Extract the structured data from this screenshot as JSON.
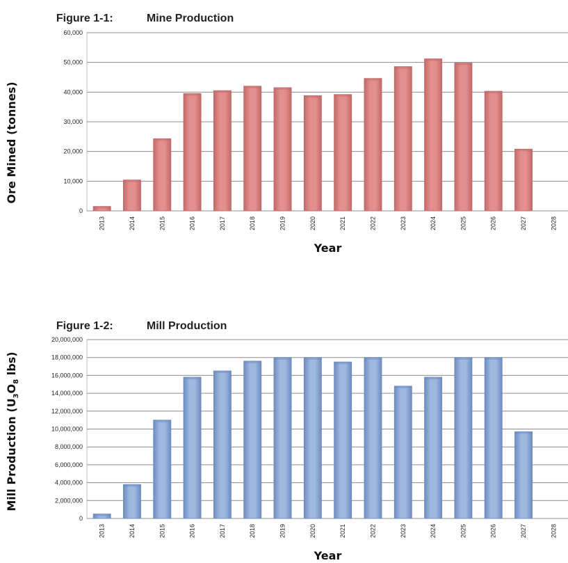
{
  "figure1": {
    "fig_label": "Figure 1-1:",
    "fig_name": "Mine Production"
  },
  "figure2": {
    "fig_label": "Figure 1-2:",
    "fig_name": "Mill Production"
  },
  "colors": {
    "mine_bar": "#e48f8f",
    "mine_bar_dark": "#c26a6a",
    "mill_bar": "#9fb8e0",
    "mill_bar_dark": "#6d8cc0"
  },
  "chart_data": [
    {
      "type": "bar",
      "title": "Mine Production",
      "xlabel": "Year",
      "ylabel": "Ore Mined (tonnes)",
      "ylim": [
        0,
        60000
      ],
      "yticks": [
        0,
        10000,
        20000,
        30000,
        40000,
        50000,
        60000
      ],
      "ytick_labels": [
        "0",
        "10,000",
        "20,000",
        "30,000",
        "40,000",
        "50,000",
        "60,000"
      ],
      "grid": true,
      "categories": [
        "2013",
        "2014",
        "2015",
        "2016",
        "2017",
        "2018",
        "2019",
        "2020",
        "2021",
        "2022",
        "2023",
        "2024",
        "2025",
        "2026",
        "2027",
        "2028"
      ],
      "values": [
        1500,
        10400,
        24300,
        39500,
        40500,
        42000,
        41500,
        38800,
        39200,
        44600,
        48600,
        51200,
        49800,
        40300,
        20800,
        0
      ]
    },
    {
      "type": "bar",
      "title": "Mill Production",
      "xlabel": "Year",
      "ylabel_main": "Mill Production (U",
      "ylabel_sub1": "3",
      "ylabel_mid": "O",
      "ylabel_sub2": "8",
      "ylabel_end": " lbs)",
      "ylim": [
        0,
        20000000
      ],
      "yticks": [
        0,
        2000000,
        4000000,
        6000000,
        8000000,
        10000000,
        12000000,
        14000000,
        16000000,
        18000000,
        20000000
      ],
      "ytick_labels": [
        "0",
        "2,000,000",
        "4,000,000",
        "6,000,000",
        "8,000,000",
        "10,000,000",
        "12,000,000",
        "14,000,000",
        "16,000,000",
        "18,000,000",
        "20,000,000"
      ],
      "grid": true,
      "categories": [
        "2013",
        "2014",
        "2015",
        "2016",
        "2017",
        "2018",
        "2019",
        "2020",
        "2021",
        "2022",
        "2023",
        "2024",
        "2025",
        "2026",
        "2027",
        "2028"
      ],
      "values": [
        500000,
        3800000,
        11000000,
        15800000,
        16500000,
        17600000,
        18000000,
        18000000,
        17500000,
        18000000,
        14800000,
        15800000,
        18000000,
        18000000,
        9700000,
        0
      ]
    }
  ]
}
